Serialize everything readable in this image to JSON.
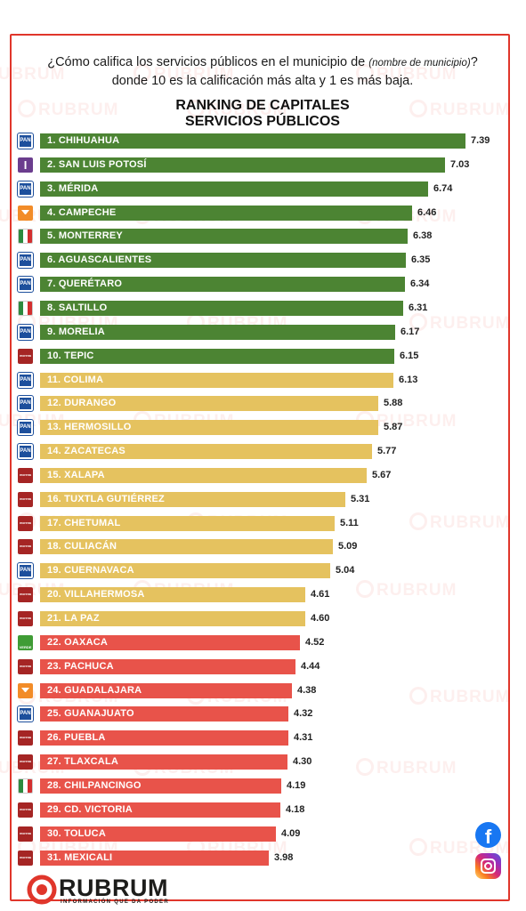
{
  "question": {
    "part1": "¿Cómo califica los servicios públicos en el municipio de ",
    "italic": "(nombre de municipio)",
    "part2": "? donde 10 es la calificación más alta y 1 es más baja."
  },
  "brand": {
    "name": "RUBRUM",
    "tagline": "INFORMACIÓN QUE DA PODER",
    "watermark": "RUBRUM"
  },
  "social": {
    "facebook_icon": "facebook-icon",
    "instagram_icon": "instagram-icon"
  },
  "colors": {
    "green": "#4c8433",
    "yellow": "#e5c25f",
    "red": "#e8534a",
    "frame": "#e0362b"
  },
  "chart_data": {
    "type": "bar",
    "orientation": "horizontal",
    "title": "RANKING DE CAPITALES SERVICIOS PÚBLICOS",
    "title_lines": [
      "RANKING DE CAPITALES",
      "SERVICIOS PÚBLICOS"
    ],
    "xlim": [
      0,
      7.39
    ],
    "grid": false,
    "categories": [
      "1. CHIHUAHUA",
      "2. SAN LUIS POTOSÍ",
      "3. MÉRIDA",
      "4. CAMPECHE",
      "5. MONTERREY",
      "6. AGUASCALIENTES",
      "7. QUERÉTARO",
      "8. SALTILLO",
      "9. MORELIA",
      "10. TEPIC",
      "11. COLIMA",
      "12. DURANGO",
      "13. HERMOSILLO",
      "14. ZACATECAS",
      "15. XALAPA",
      "16. TUXTLA GUTIÉRREZ",
      "17. CHETUMAL",
      "18. CULIACÁN",
      "19. CUERNAVACA",
      "20. VILLAHERMOSA",
      "21. LA PAZ",
      "22. OAXACA",
      "23. PACHUCA",
      "24. GUADALAJARA",
      "25. GUANAJUATO",
      "26. PUEBLA",
      "27. TLAXCALA",
      "28. CHILPANCINGO",
      "29. CD. VICTORIA",
      "30. TOLUCA",
      "31. MEXICALI"
    ],
    "values": [
      7.39,
      7.03,
      6.74,
      6.46,
      6.38,
      6.35,
      6.34,
      6.31,
      6.17,
      6.15,
      6.13,
      5.88,
      5.87,
      5.77,
      5.67,
      5.31,
      5.11,
      5.09,
      5.04,
      4.61,
      4.6,
      4.52,
      4.44,
      4.38,
      4.32,
      4.31,
      4.3,
      4.19,
      4.18,
      4.09,
      3.98
    ],
    "value_labels": [
      "7.39",
      "7.03",
      "6.74",
      "6.46",
      "6.38",
      "6.35",
      "6.34",
      "6.31",
      "6.17",
      "6.15",
      "6.13",
      "5.88",
      "5.87",
      "5.77",
      "5.67",
      "5.31",
      "5.11",
      "5.09",
      "5.04",
      "4.61",
      "4.60",
      "4.52",
      "4.44",
      "4.38",
      "4.32",
      "4.31",
      "4.30",
      "4.19",
      "4.18",
      "4.09",
      "3.98"
    ],
    "bar_colors": [
      "green",
      "green",
      "green",
      "green",
      "green",
      "green",
      "green",
      "green",
      "green",
      "green",
      "yellow",
      "yellow",
      "yellow",
      "yellow",
      "yellow",
      "yellow",
      "yellow",
      "yellow",
      "yellow",
      "yellow",
      "yellow",
      "red",
      "red",
      "red",
      "red",
      "red",
      "red",
      "red",
      "red",
      "red",
      "red"
    ],
    "party_logos": [
      "pan",
      "independiente",
      "pan",
      "mc",
      "pri",
      "pan",
      "pan",
      "pri",
      "pan",
      "morena",
      "pan",
      "pan",
      "pan",
      "pan",
      "morena",
      "morena",
      "morena",
      "morena",
      "pan",
      "morena",
      "morena",
      "verde",
      "morena",
      "mc",
      "pan",
      "morena",
      "morena",
      "pri",
      "morena",
      "morena",
      "morena"
    ],
    "party_logo_text": {
      "pan": "PAN",
      "independiente": "I",
      "verde": "VERDE",
      "morena": "morena"
    }
  }
}
